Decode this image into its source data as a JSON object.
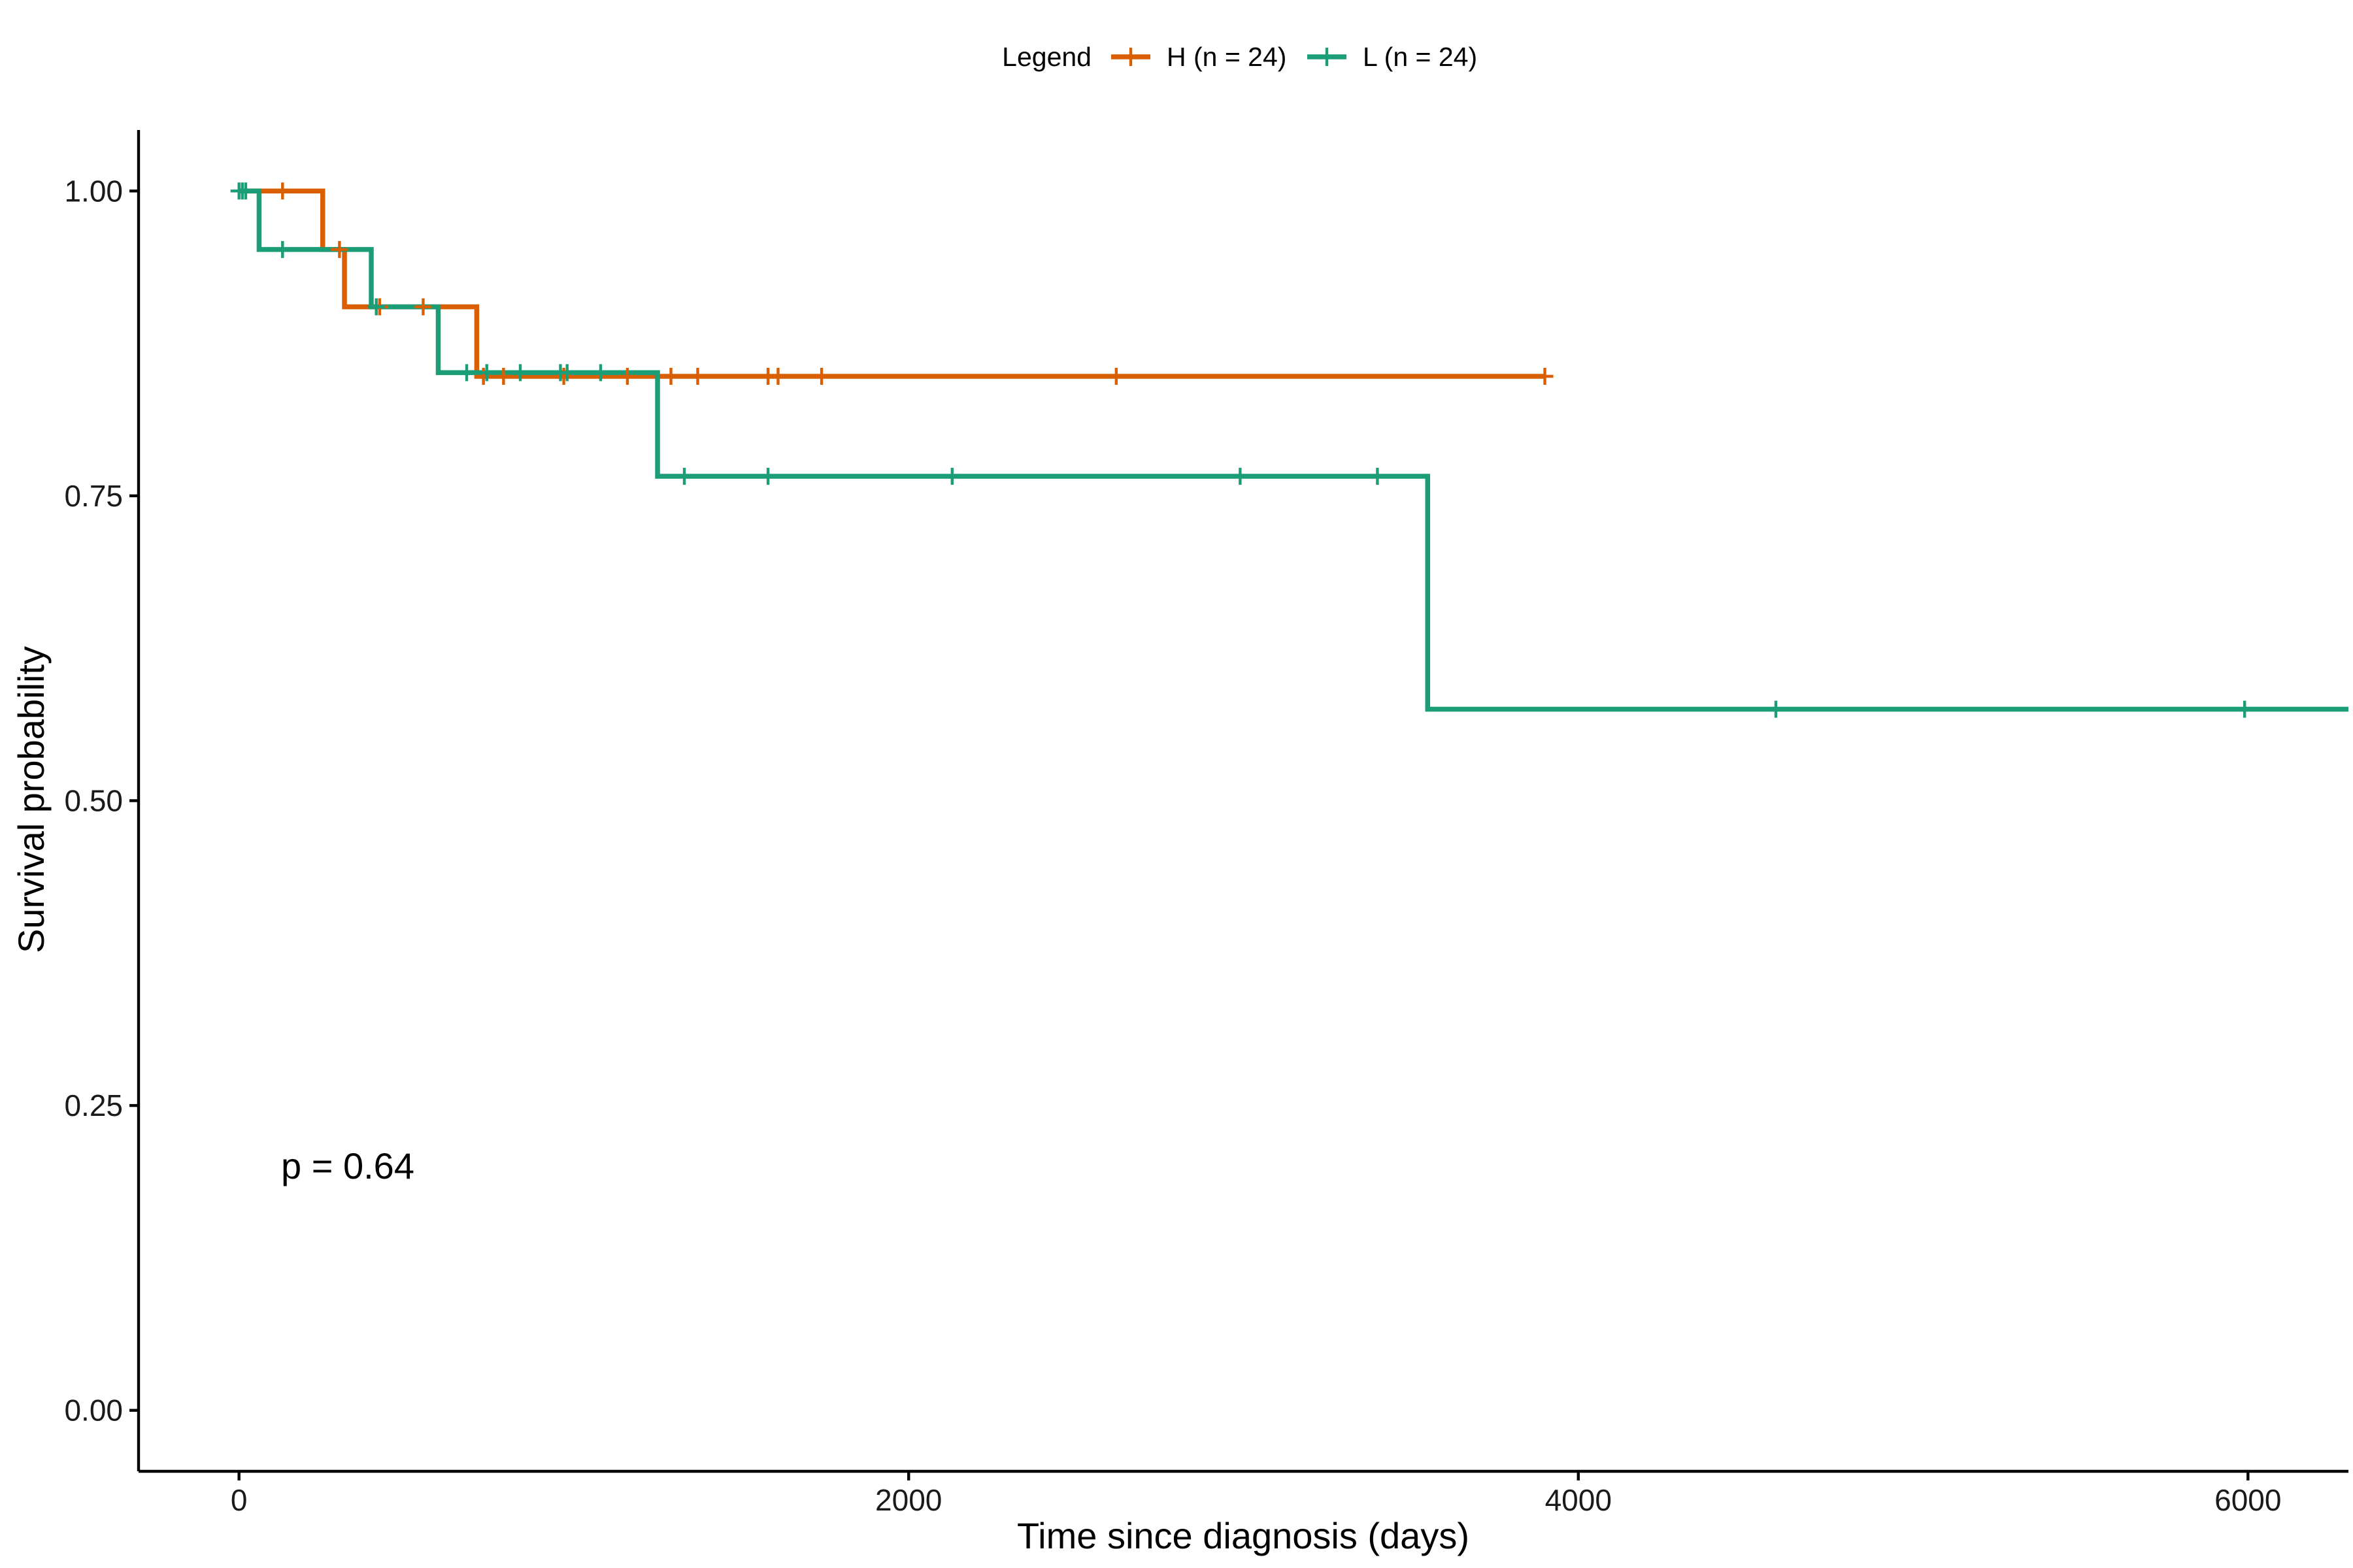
{
  "chart_data": {
    "type": "line",
    "subtype": "kaplan-meier step",
    "xlabel": "Time since diagnosis (days)",
    "ylabel": "Survival probability",
    "xlim": [
      -300,
      6300
    ],
    "ylim": [
      -0.05,
      1.05
    ],
    "x_ticks": [
      0,
      2000,
      4000,
      6000
    ],
    "x_tick_labels": [
      "0",
      "2000",
      "4000",
      "6000"
    ],
    "y_ticks": [
      0,
      0.25,
      0.5,
      0.75,
      1.0
    ],
    "y_tick_labels": [
      "0.00",
      "0.25",
      "0.50",
      "0.75",
      "1.00"
    ],
    "grid": false,
    "legend": {
      "title": "Legend",
      "placement": "top",
      "entries": [
        "H (n = 24)",
        "L (n = 24)"
      ]
    },
    "annotation": "p = 0.64",
    "series": [
      {
        "name": "H (n = 24)",
        "color": "#D95F02",
        "steps": [
          [
            0,
            1.0
          ],
          [
            250,
            0.952
          ],
          [
            315,
            0.905
          ],
          [
            710,
            0.848
          ],
          [
            3900,
            0.848
          ]
        ],
        "censor_times": [
          130,
          300,
          420,
          550,
          730,
          790,
          970,
          1160,
          1290,
          1370,
          1580,
          1610,
          1740,
          2620,
          3900
        ]
      },
      {
        "name": "L (n = 24)",
        "color": "#1B9E77",
        "steps": [
          [
            0,
            1.0
          ],
          [
            60,
            0.952
          ],
          [
            395,
            0.905
          ],
          [
            595,
            0.851
          ],
          [
            1250,
            0.766
          ],
          [
            3550,
            0.575
          ],
          [
            6300,
            0.575
          ]
        ],
        "censor_times": [
          0,
          10,
          20,
          130,
          410,
          680,
          740,
          840,
          960,
          980,
          1080,
          1330,
          1580,
          2130,
          2990,
          3400,
          4590,
          5990
        ]
      }
    ]
  }
}
